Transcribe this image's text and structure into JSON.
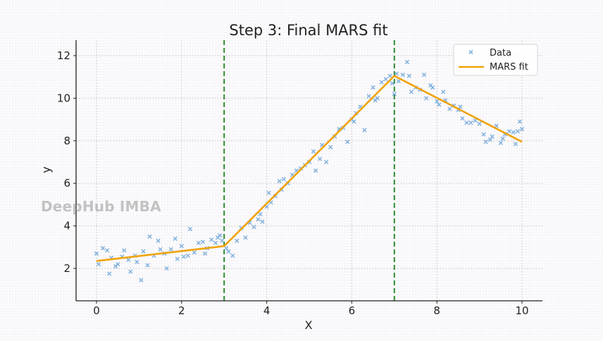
{
  "watermark": "DeepHub IMBA",
  "colors": {
    "data_marker": "#5b9bd5",
    "fit_line": "#f0a30a",
    "knot_line": "#2e8b30",
    "grid": "#cfcfcf",
    "axis": "#222222"
  },
  "chart_data": {
    "type": "scatter",
    "title": "Step 3: Final MARS fit",
    "xlabel": "X",
    "ylabel": "y",
    "xlim": [
      -0.5,
      10.5
    ],
    "ylim": [
      0.5,
      12.6
    ],
    "xticks": [
      0,
      2,
      4,
      6,
      8,
      10
    ],
    "yticks": [
      2,
      4,
      6,
      8,
      10,
      12
    ],
    "grid": true,
    "legend": {
      "position": "upper right",
      "entries": [
        "Data",
        "MARS fit"
      ]
    },
    "knots": [
      3,
      7
    ],
    "series": [
      {
        "name": "Data",
        "kind": "scatter",
        "marker": "x",
        "points": [
          [
            0.0,
            2.7
          ],
          [
            0.05,
            2.2
          ],
          [
            0.15,
            2.95
          ],
          [
            0.25,
            2.85
          ],
          [
            0.3,
            1.75
          ],
          [
            0.35,
            2.5
          ],
          [
            0.45,
            2.1
          ],
          [
            0.5,
            2.2
          ],
          [
            0.6,
            2.55
          ],
          [
            0.65,
            2.85
          ],
          [
            0.75,
            2.4
          ],
          [
            0.8,
            1.85
          ],
          [
            0.9,
            2.6
          ],
          [
            0.95,
            2.3
          ],
          [
            1.05,
            1.45
          ],
          [
            1.1,
            2.8
          ],
          [
            1.2,
            2.15
          ],
          [
            1.25,
            3.5
          ],
          [
            1.35,
            2.6
          ],
          [
            1.45,
            3.3
          ],
          [
            1.5,
            2.9
          ],
          [
            1.6,
            2.7
          ],
          [
            1.65,
            2.0
          ],
          [
            1.75,
            2.9
          ],
          [
            1.85,
            3.4
          ],
          [
            1.9,
            2.45
          ],
          [
            2.0,
            3.05
          ],
          [
            2.05,
            2.55
          ],
          [
            2.15,
            2.6
          ],
          [
            2.2,
            3.85
          ],
          [
            2.3,
            2.75
          ],
          [
            2.4,
            3.2
          ],
          [
            2.5,
            3.25
          ],
          [
            2.55,
            2.7
          ],
          [
            2.6,
            2.95
          ],
          [
            2.7,
            3.35
          ],
          [
            2.8,
            3.2
          ],
          [
            2.85,
            3.45
          ],
          [
            2.9,
            3.55
          ],
          [
            2.95,
            3.3
          ],
          [
            3.05,
            2.95
          ],
          [
            3.1,
            2.8
          ],
          [
            3.2,
            2.6
          ],
          [
            3.3,
            3.3
          ],
          [
            3.4,
            3.9
          ],
          [
            3.5,
            3.45
          ],
          [
            3.6,
            4.15
          ],
          [
            3.7,
            3.95
          ],
          [
            3.8,
            4.3
          ],
          [
            3.85,
            4.55
          ],
          [
            3.9,
            4.2
          ],
          [
            4.0,
            4.9
          ],
          [
            4.05,
            5.55
          ],
          [
            4.1,
            5.1
          ],
          [
            4.2,
            5.4
          ],
          [
            4.3,
            6.1
          ],
          [
            4.35,
            5.7
          ],
          [
            4.4,
            6.2
          ],
          [
            4.5,
            6.0
          ],
          [
            4.6,
            6.4
          ],
          [
            4.7,
            6.6
          ],
          [
            4.8,
            6.7
          ],
          [
            4.9,
            6.85
          ],
          [
            5.0,
            7.0
          ],
          [
            5.1,
            7.5
          ],
          [
            5.15,
            6.6
          ],
          [
            5.25,
            7.15
          ],
          [
            5.3,
            7.8
          ],
          [
            5.4,
            7.0
          ],
          [
            5.5,
            7.7
          ],
          [
            5.6,
            8.2
          ],
          [
            5.7,
            8.55
          ],
          [
            5.8,
            8.6
          ],
          [
            5.9,
            7.95
          ],
          [
            6.0,
            9.0
          ],
          [
            6.05,
            8.9
          ],
          [
            6.1,
            9.3
          ],
          [
            6.2,
            9.6
          ],
          [
            6.3,
            8.5
          ],
          [
            6.4,
            10.1
          ],
          [
            6.5,
            10.5
          ],
          [
            6.55,
            9.9
          ],
          [
            6.6,
            10.0
          ],
          [
            6.7,
            10.75
          ],
          [
            6.8,
            10.9
          ],
          [
            6.9,
            11.05
          ],
          [
            6.95,
            10.7
          ],
          [
            7.0,
            10.2
          ],
          [
            7.05,
            11.15
          ],
          [
            7.1,
            10.8
          ],
          [
            7.2,
            11.1
          ],
          [
            7.3,
            11.7
          ],
          [
            7.35,
            11.05
          ],
          [
            7.4,
            10.3
          ],
          [
            7.5,
            10.5
          ],
          [
            7.6,
            10.4
          ],
          [
            7.7,
            11.1
          ],
          [
            7.75,
            10.0
          ],
          [
            7.85,
            10.6
          ],
          [
            7.9,
            10.5
          ],
          [
            8.0,
            9.85
          ],
          [
            8.05,
            9.7
          ],
          [
            8.15,
            10.3
          ],
          [
            8.2,
            9.9
          ],
          [
            8.3,
            9.5
          ],
          [
            8.4,
            9.65
          ],
          [
            8.5,
            9.45
          ],
          [
            8.55,
            9.6
          ],
          [
            8.6,
            9.05
          ],
          [
            8.7,
            8.85
          ],
          [
            8.8,
            8.85
          ],
          [
            8.9,
            8.95
          ],
          [
            9.0,
            8.8
          ],
          [
            9.1,
            8.3
          ],
          [
            9.15,
            7.95
          ],
          [
            9.25,
            8.05
          ],
          [
            9.3,
            8.2
          ],
          [
            9.4,
            8.7
          ],
          [
            9.5,
            7.9
          ],
          [
            9.55,
            8.1
          ],
          [
            9.6,
            8.3
          ],
          [
            9.7,
            8.45
          ],
          [
            9.8,
            8.4
          ],
          [
            9.85,
            7.85
          ],
          [
            9.9,
            8.45
          ],
          [
            9.95,
            8.9
          ],
          [
            10.0,
            8.55
          ]
        ]
      },
      {
        "name": "MARS fit",
        "kind": "line",
        "points": [
          [
            0,
            2.35
          ],
          [
            3,
            3.05
          ],
          [
            7,
            11.05
          ],
          [
            10,
            7.95
          ]
        ]
      }
    ]
  }
}
